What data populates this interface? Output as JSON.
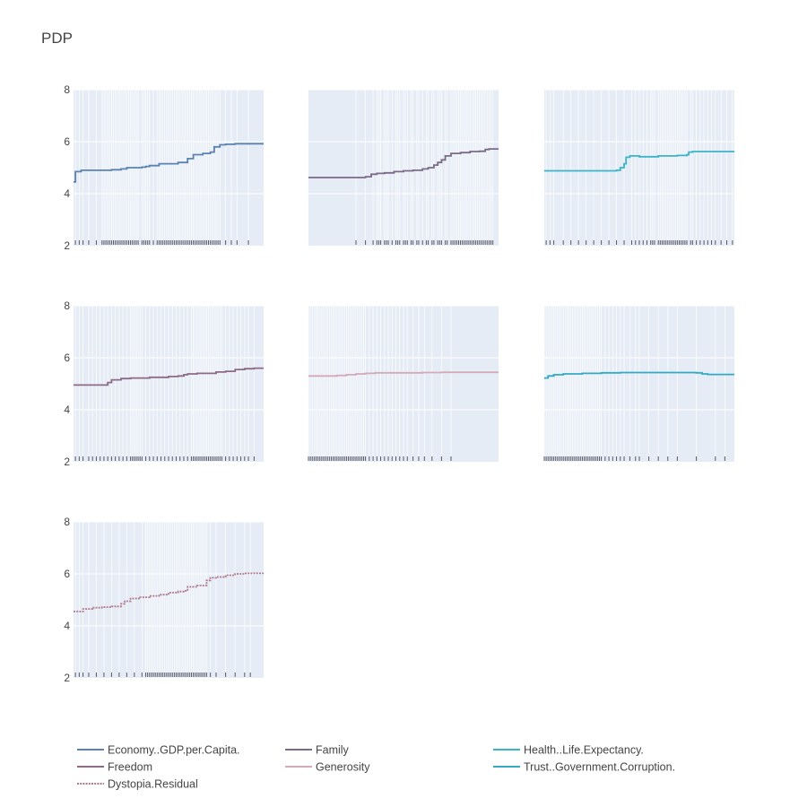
{
  "title": "PDP",
  "colors": {
    "panel_bg": "#E5ECF6",
    "grid": "#FFFFFF",
    "rug": "#555566"
  },
  "chart_data": {
    "type": "line",
    "layout": "subplot-grid",
    "rows": 3,
    "cols": 3,
    "ylim": [
      2,
      8
    ],
    "yticks": [
      2,
      4,
      6,
      8
    ],
    "grid": true,
    "legend_position": "bottom",
    "subplots": [
      {
        "name": "Economy..GDP.per.Capita.",
        "color": "#5b82b0",
        "dash": "solid",
        "x": [
          0.0,
          0.01,
          0.04,
          0.1,
          0.15,
          0.2,
          0.25,
          0.28,
          0.33,
          0.36,
          0.38,
          0.4,
          0.45,
          0.5,
          0.55,
          0.58,
          0.6,
          0.63,
          0.68,
          0.72,
          0.74,
          0.77,
          0.8,
          0.85,
          0.9,
          0.95,
          1.0
        ],
        "y": [
          4.45,
          4.85,
          4.9,
          4.9,
          4.9,
          4.92,
          4.95,
          5.0,
          5.0,
          5.02,
          5.05,
          5.08,
          5.15,
          5.15,
          5.2,
          5.2,
          5.35,
          5.5,
          5.55,
          5.6,
          5.8,
          5.88,
          5.9,
          5.92,
          5.92,
          5.92,
          5.92
        ],
        "rug": [
          0.01,
          0.03,
          0.05,
          0.08,
          0.12,
          0.15,
          0.16,
          0.17,
          0.18,
          0.19,
          0.2,
          0.21,
          0.22,
          0.23,
          0.24,
          0.25,
          0.26,
          0.27,
          0.28,
          0.29,
          0.3,
          0.31,
          0.32,
          0.33,
          0.34,
          0.36,
          0.37,
          0.38,
          0.39,
          0.4,
          0.42,
          0.44,
          0.45,
          0.46,
          0.47,
          0.48,
          0.49,
          0.5,
          0.51,
          0.52,
          0.53,
          0.54,
          0.55,
          0.56,
          0.57,
          0.58,
          0.59,
          0.6,
          0.61,
          0.62,
          0.63,
          0.64,
          0.65,
          0.66,
          0.67,
          0.68,
          0.69,
          0.7,
          0.71,
          0.72,
          0.73,
          0.74,
          0.75,
          0.76,
          0.77,
          0.8,
          0.83,
          0.86,
          0.92
        ]
      },
      {
        "name": "Family",
        "color": "#7b6a88",
        "dash": "solid",
        "x": [
          0.0,
          0.1,
          0.2,
          0.27,
          0.3,
          0.33,
          0.36,
          0.4,
          0.45,
          0.5,
          0.55,
          0.6,
          0.63,
          0.66,
          0.68,
          0.7,
          0.72,
          0.75,
          0.8,
          0.85,
          0.9,
          0.93,
          0.95,
          1.0
        ],
        "y": [
          4.62,
          4.62,
          4.62,
          4.62,
          4.65,
          4.75,
          4.78,
          4.8,
          4.85,
          4.88,
          4.9,
          4.95,
          5.0,
          5.1,
          5.2,
          5.3,
          5.45,
          5.55,
          5.58,
          5.62,
          5.63,
          5.7,
          5.72,
          5.72
        ],
        "rug": [
          0.25,
          0.3,
          0.34,
          0.36,
          0.37,
          0.38,
          0.4,
          0.41,
          0.42,
          0.44,
          0.46,
          0.47,
          0.48,
          0.5,
          0.51,
          0.52,
          0.54,
          0.55,
          0.57,
          0.58,
          0.6,
          0.62,
          0.63,
          0.65,
          0.66,
          0.68,
          0.69,
          0.7,
          0.72,
          0.73,
          0.75,
          0.76,
          0.77,
          0.78,
          0.79,
          0.8,
          0.81,
          0.82,
          0.83,
          0.84,
          0.85,
          0.86,
          0.87,
          0.88,
          0.89,
          0.9,
          0.91,
          0.92,
          0.93,
          0.94,
          0.95,
          0.96,
          0.97
        ]
      },
      {
        "name": "Health..Life.Expectancy.",
        "color": "#3bb4c8",
        "dash": "solid",
        "x": [
          0.0,
          0.1,
          0.2,
          0.3,
          0.38,
          0.4,
          0.42,
          0.43,
          0.45,
          0.5,
          0.55,
          0.6,
          0.65,
          0.7,
          0.75,
          0.76,
          0.78,
          0.8,
          0.85,
          0.9,
          0.95,
          1.0
        ],
        "y": [
          4.88,
          4.88,
          4.88,
          4.88,
          4.9,
          5.0,
          5.15,
          5.4,
          5.45,
          5.42,
          5.42,
          5.45,
          5.45,
          5.47,
          5.5,
          5.6,
          5.62,
          5.62,
          5.62,
          5.62,
          5.62,
          5.62
        ],
        "rug": [
          0.01,
          0.03,
          0.05,
          0.1,
          0.14,
          0.18,
          0.22,
          0.26,
          0.3,
          0.34,
          0.38,
          0.42,
          0.46,
          0.48,
          0.5,
          0.52,
          0.54,
          0.56,
          0.57,
          0.58,
          0.6,
          0.61,
          0.62,
          0.63,
          0.64,
          0.65,
          0.66,
          0.67,
          0.68,
          0.69,
          0.7,
          0.71,
          0.72,
          0.73,
          0.74,
          0.75,
          0.77,
          0.78,
          0.8,
          0.82,
          0.84,
          0.86,
          0.88,
          0.9,
          0.93,
          0.96,
          0.99
        ]
      },
      {
        "name": "Freedom",
        "color": "#8e6a86",
        "dash": "solid",
        "x": [
          0.0,
          0.1,
          0.15,
          0.18,
          0.2,
          0.25,
          0.3,
          0.35,
          0.4,
          0.45,
          0.5,
          0.55,
          0.58,
          0.6,
          0.65,
          0.7,
          0.75,
          0.8,
          0.85,
          0.9,
          0.95,
          1.0
        ],
        "y": [
          4.95,
          4.95,
          4.95,
          5.05,
          5.15,
          5.2,
          5.22,
          5.22,
          5.25,
          5.25,
          5.28,
          5.3,
          5.35,
          5.38,
          5.4,
          5.4,
          5.45,
          5.48,
          5.55,
          5.58,
          5.6,
          5.6
        ],
        "rug": [
          0.01,
          0.03,
          0.05,
          0.08,
          0.1,
          0.12,
          0.14,
          0.16,
          0.18,
          0.2,
          0.22,
          0.24,
          0.26,
          0.28,
          0.3,
          0.31,
          0.32,
          0.33,
          0.34,
          0.35,
          0.36,
          0.38,
          0.4,
          0.42,
          0.44,
          0.46,
          0.48,
          0.5,
          0.52,
          0.54,
          0.56,
          0.58,
          0.6,
          0.62,
          0.63,
          0.64,
          0.65,
          0.66,
          0.67,
          0.68,
          0.69,
          0.7,
          0.71,
          0.72,
          0.73,
          0.74,
          0.75,
          0.76,
          0.77,
          0.78,
          0.8,
          0.82,
          0.84,
          0.86,
          0.88,
          0.9,
          0.92,
          0.95
        ]
      },
      {
        "name": "Generosity",
        "color": "#d4a9b8",
        "dash": "solid",
        "x": [
          0.0,
          0.05,
          0.1,
          0.15,
          0.2,
          0.25,
          0.3,
          0.35,
          0.4,
          0.5,
          0.6,
          0.7,
          0.8,
          0.9,
          1.0
        ],
        "y": [
          5.3,
          5.3,
          5.3,
          5.32,
          5.35,
          5.38,
          5.4,
          5.42,
          5.42,
          5.42,
          5.43,
          5.44,
          5.44,
          5.44,
          5.44
        ],
        "rug": [
          0.0,
          0.01,
          0.02,
          0.03,
          0.04,
          0.05,
          0.06,
          0.07,
          0.08,
          0.09,
          0.1,
          0.11,
          0.12,
          0.13,
          0.14,
          0.15,
          0.16,
          0.17,
          0.18,
          0.19,
          0.2,
          0.21,
          0.22,
          0.23,
          0.24,
          0.25,
          0.26,
          0.27,
          0.28,
          0.29,
          0.3,
          0.32,
          0.34,
          0.36,
          0.38,
          0.4,
          0.42,
          0.44,
          0.46,
          0.48,
          0.5,
          0.52,
          0.55,
          0.58,
          0.61,
          0.65,
          0.7,
          0.75
        ]
      },
      {
        "name": "Trust..Government.Corruption.",
        "color": "#33a9c2",
        "dash": "solid",
        "x": [
          0.0,
          0.02,
          0.05,
          0.1,
          0.2,
          0.3,
          0.4,
          0.5,
          0.6,
          0.7,
          0.8,
          0.83,
          0.86,
          0.9,
          1.0
        ],
        "y": [
          5.22,
          5.3,
          5.35,
          5.38,
          5.4,
          5.42,
          5.43,
          5.43,
          5.43,
          5.43,
          5.42,
          5.38,
          5.36,
          5.36,
          5.36
        ],
        "rug": [
          0.0,
          0.01,
          0.02,
          0.03,
          0.04,
          0.05,
          0.06,
          0.07,
          0.08,
          0.09,
          0.1,
          0.11,
          0.12,
          0.13,
          0.14,
          0.15,
          0.16,
          0.17,
          0.18,
          0.19,
          0.2,
          0.21,
          0.22,
          0.23,
          0.24,
          0.25,
          0.26,
          0.27,
          0.28,
          0.29,
          0.3,
          0.32,
          0.34,
          0.36,
          0.38,
          0.4,
          0.42,
          0.45,
          0.48,
          0.5,
          0.55,
          0.6,
          0.65,
          0.7,
          0.8,
          0.9,
          0.95
        ]
      },
      {
        "name": "Dystopia.Residual",
        "color": "#b07a8e",
        "dash": "dot",
        "x": [
          0.0,
          0.05,
          0.1,
          0.15,
          0.2,
          0.25,
          0.27,
          0.3,
          0.35,
          0.4,
          0.45,
          0.5,
          0.55,
          0.58,
          0.6,
          0.65,
          0.7,
          0.72,
          0.75,
          0.8,
          0.85,
          0.9,
          0.95,
          1.0
        ],
        "y": [
          4.55,
          4.65,
          4.7,
          4.72,
          4.75,
          4.85,
          4.95,
          5.05,
          5.1,
          5.15,
          5.2,
          5.28,
          5.32,
          5.35,
          5.5,
          5.55,
          5.75,
          5.85,
          5.88,
          5.95,
          6.0,
          6.02,
          6.02,
          6.02
        ],
        "rug": [
          0.01,
          0.03,
          0.05,
          0.08,
          0.12,
          0.16,
          0.2,
          0.24,
          0.28,
          0.32,
          0.36,
          0.38,
          0.39,
          0.4,
          0.41,
          0.42,
          0.43,
          0.44,
          0.45,
          0.46,
          0.47,
          0.48,
          0.49,
          0.5,
          0.51,
          0.52,
          0.53,
          0.54,
          0.55,
          0.56,
          0.57,
          0.58,
          0.59,
          0.6,
          0.61,
          0.62,
          0.63,
          0.64,
          0.65,
          0.66,
          0.67,
          0.68,
          0.69,
          0.7,
          0.72,
          0.75,
          0.8,
          0.85,
          0.9,
          0.93
        ]
      }
    ]
  }
}
